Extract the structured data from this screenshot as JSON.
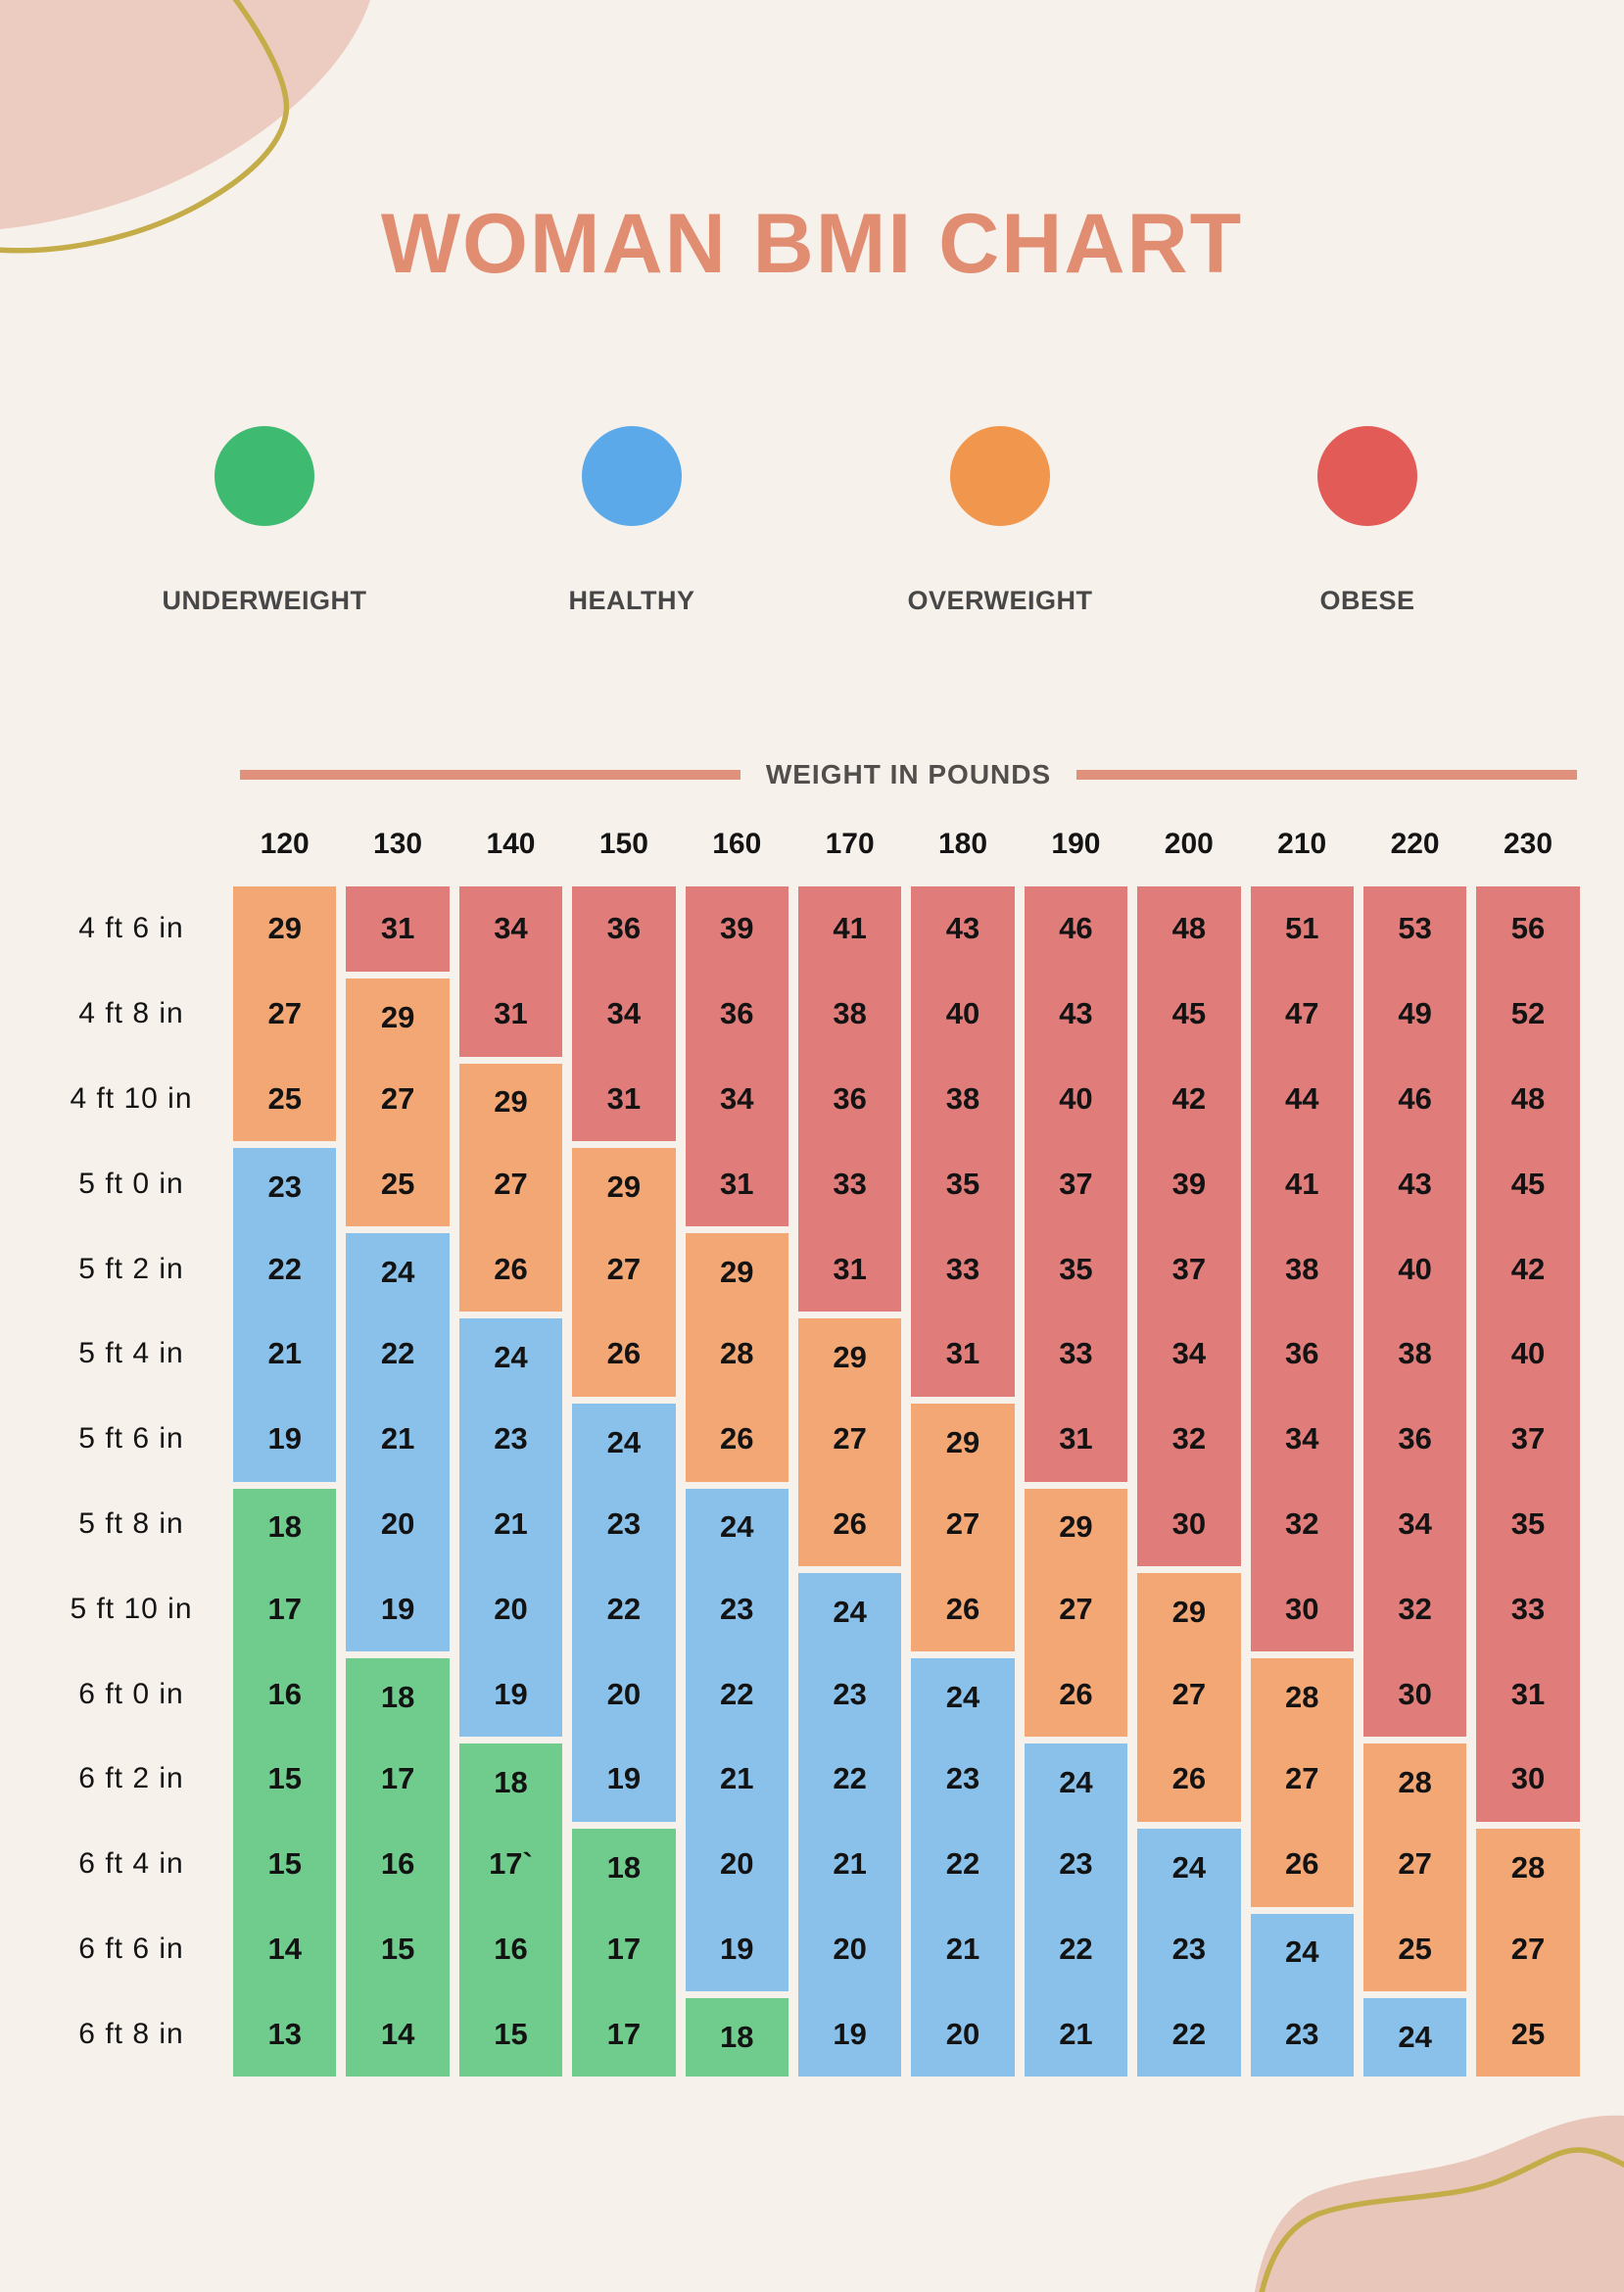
{
  "chart_data": {
    "type": "heatmap",
    "title": "WOMAN BMI CHART",
    "x_axis_label": "WEIGHT IN POUNDS",
    "x_categories": [
      "120",
      "130",
      "140",
      "150",
      "160",
      "170",
      "180",
      "190",
      "200",
      "210",
      "220",
      "230"
    ],
    "y_categories": [
      "4 ft 6 in",
      "4 ft 8 in",
      "4 ft 10 in",
      "5 ft 0 in",
      "5 ft 2 in",
      "5 ft 4 in",
      "5 ft 6 in",
      "5 ft 8 in",
      "5 ft 10 in",
      "6 ft 0 in",
      "6 ft 2 in",
      "6 ft 4 in",
      "6 ft 6 in",
      "6 ft 8 in"
    ],
    "values": [
      [
        "29",
        "31",
        "34",
        "36",
        "39",
        "41",
        "43",
        "46",
        "48",
        "51",
        "53",
        "56"
      ],
      [
        "27",
        "29",
        "31",
        "34",
        "36",
        "38",
        "40",
        "43",
        "45",
        "47",
        "49",
        "52"
      ],
      [
        "25",
        "27",
        "29",
        "31",
        "34",
        "36",
        "38",
        "40",
        "42",
        "44",
        "46",
        "48"
      ],
      [
        "23",
        "25",
        "27",
        "29",
        "31",
        "33",
        "35",
        "37",
        "39",
        "41",
        "43",
        "45"
      ],
      [
        "22",
        "24",
        "26",
        "27",
        "29",
        "31",
        "33",
        "35",
        "37",
        "38",
        "40",
        "42"
      ],
      [
        "21",
        "22",
        "24",
        "26",
        "28",
        "29",
        "31",
        "33",
        "34",
        "36",
        "38",
        "40"
      ],
      [
        "19",
        "21",
        "23",
        "24",
        "26",
        "27",
        "29",
        "31",
        "32",
        "34",
        "36",
        "37"
      ],
      [
        "18",
        "20",
        "21",
        "23",
        "24",
        "26",
        "27",
        "29",
        "30",
        "32",
        "34",
        "35"
      ],
      [
        "17",
        "19",
        "20",
        "22",
        "23",
        "24",
        "26",
        "27",
        "29",
        "30",
        "32",
        "33"
      ],
      [
        "16",
        "18",
        "19",
        "20",
        "22",
        "23",
        "24",
        "26",
        "27",
        "28",
        "30",
        "31"
      ],
      [
        "15",
        "17",
        "18",
        "19",
        "21",
        "22",
        "23",
        "24",
        "26",
        "27",
        "28",
        "30"
      ],
      [
        "15",
        "16",
        "17`",
        "18",
        "20",
        "21",
        "22",
        "23",
        "24",
        "26",
        "27",
        "28"
      ],
      [
        "14",
        "15",
        "16",
        "17",
        "19",
        "20",
        "21",
        "22",
        "23",
        "24",
        "25",
        "27"
      ],
      [
        "13",
        "14",
        "15",
        "17",
        "18",
        "19",
        "20",
        "21",
        "22",
        "23",
        "24",
        "25"
      ]
    ],
    "legend": [
      {
        "label": "UNDERWEIGHT",
        "category": "underweight",
        "color": "#3EBB70"
      },
      {
        "label": "HEALTHY",
        "category": "healthy",
        "color": "#5BA9E8"
      },
      {
        "label": "OVERWEIGHT",
        "category": "overweight",
        "color": "#F0964D"
      },
      {
        "label": "OBESE",
        "category": "obese",
        "color": "#E25B57"
      }
    ],
    "cell_colors": {
      "underweight": "#6FCC8D",
      "healthy": "#8AC1EA",
      "overweight": "#F2A775",
      "obese": "#E07D7A"
    },
    "category_rule": {
      "underweight_max": 18,
      "healthy_max": 24,
      "overweight_max": 29
    },
    "colors": {
      "background": "#F7F1EC",
      "title": "#E18D72",
      "axis_line": "#E0917C",
      "blob_top_left": "#ECCCC0",
      "blob_bottom_right": "#E8C6B9",
      "gold_line": "#C4AC48"
    },
    "legend_positions_x": [
      140,
      515,
      891,
      1266
    ]
  }
}
